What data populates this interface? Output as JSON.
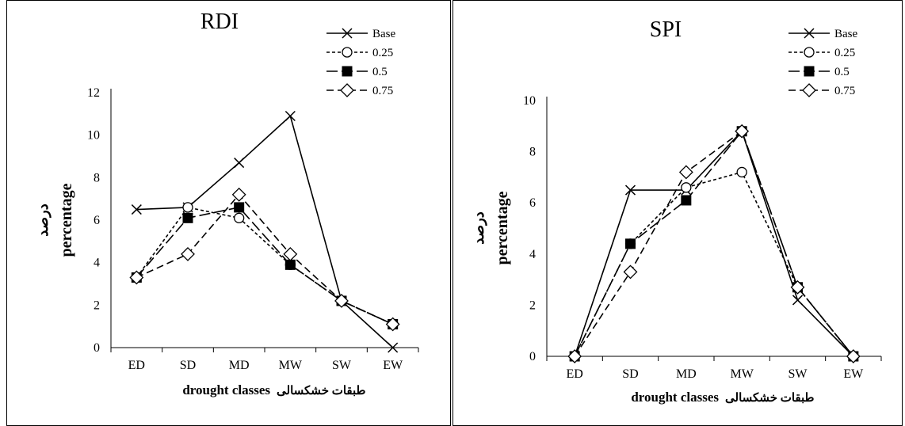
{
  "chart_data": [
    {
      "type": "line",
      "title": "RDI",
      "categories": [
        "ED",
        "SD",
        "MD",
        "MW",
        "SW",
        "EW"
      ],
      "ylim": [
        0,
        12
      ],
      "yticks": [
        0,
        2,
        4,
        6,
        8,
        10,
        12
      ],
      "xlabel": "drought classes",
      "xlabel_fa": "طبقات خشکسالی",
      "ylabel": "percentage",
      "ylabel_fa": "درصد",
      "legend_position": "top-right",
      "grid": false,
      "series": [
        {
          "name": "Base",
          "values": [
            6.5,
            6.6,
            8.7,
            10.9,
            2.2,
            0
          ],
          "marker": "x",
          "dash": "solid"
        },
        {
          "name": "0.25",
          "values": [
            3.3,
            6.6,
            6.1,
            3.9,
            2.2,
            1.1
          ],
          "marker": "circle",
          "dash": "short"
        },
        {
          "name": "0.5",
          "values": [
            3.3,
            6.1,
            6.6,
            3.9,
            2.2,
            1.1
          ],
          "marker": "square",
          "dash": "long"
        },
        {
          "name": "0.75",
          "values": [
            3.3,
            4.4,
            7.2,
            4.4,
            2.2,
            1.1
          ],
          "marker": "diamond",
          "dash": "medium"
        }
      ]
    },
    {
      "type": "line",
      "title": "SPI",
      "categories": [
        "ED",
        "SD",
        "MD",
        "MW",
        "SW",
        "EW"
      ],
      "ylim": [
        0,
        10
      ],
      "yticks": [
        0,
        2,
        4,
        6,
        8,
        10
      ],
      "xlabel": "drought classes",
      "xlabel_fa": "طبقات خشکسالی",
      "ylabel": "percentage",
      "ylabel_fa": "درصد",
      "legend_position": "top-right",
      "grid": false,
      "series": [
        {
          "name": "Base",
          "values": [
            0,
            6.5,
            6.5,
            8.8,
            2.2,
            0
          ],
          "marker": "x",
          "dash": "solid"
        },
        {
          "name": "0.25",
          "values": [
            0,
            4.4,
            6.6,
            7.2,
            2.7,
            0
          ],
          "marker": "circle",
          "dash": "short"
        },
        {
          "name": "0.5",
          "values": [
            0,
            4.4,
            6.1,
            8.8,
            2.7,
            0
          ],
          "marker": "square",
          "dash": "long"
        },
        {
          "name": "0.75",
          "values": [
            0,
            3.3,
            7.2,
            8.8,
            2.7,
            0
          ],
          "marker": "diamond",
          "dash": "medium"
        }
      ]
    }
  ]
}
